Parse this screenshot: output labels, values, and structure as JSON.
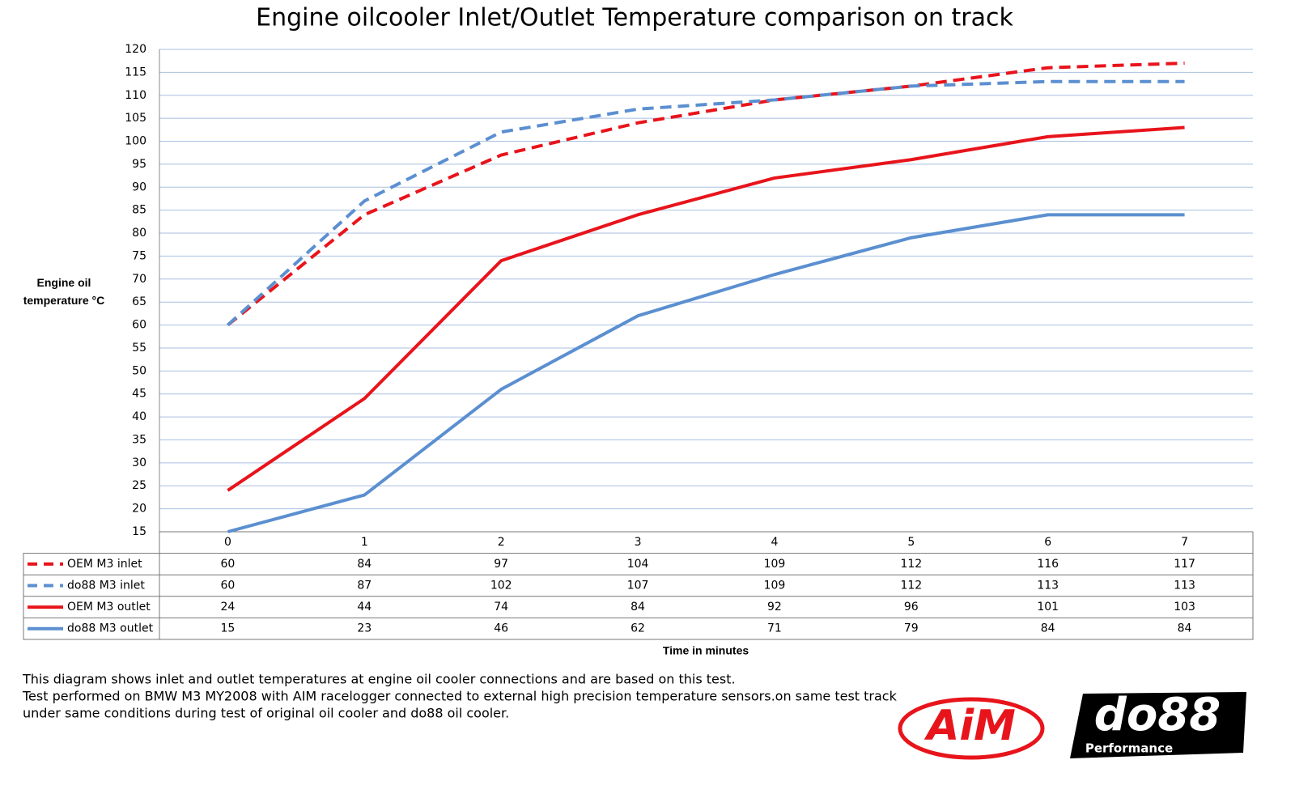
{
  "chart_data": {
    "type": "line",
    "title": "Engine oilcooler Inlet/Outlet Temperature comparison on track",
    "y_label": "Engine oil temperature °C",
    "x_label": "Time in minutes",
    "categories": [
      "0",
      "1",
      "2",
      "3",
      "4",
      "5",
      "6",
      "7"
    ],
    "series": [
      {
        "name": "OEM M3 inlet",
        "color": "#e8141b",
        "style": "dashed",
        "values": [
          60,
          84,
          97,
          104,
          109,
          112,
          116,
          117
        ]
      },
      {
        "name": "do88 M3 inlet",
        "color": "#5b8fd0",
        "style": "dashed",
        "values": [
          60,
          87,
          102,
          107,
          109,
          112,
          113,
          113
        ]
      },
      {
        "name": "OEM M3 outlet",
        "color": "#e8141b",
        "style": "solid",
        "values": [
          24,
          44,
          74,
          84,
          92,
          96,
          101,
          103
        ]
      },
      {
        "name": "do88 M3 outlet",
        "color": "#5b8fd0",
        "style": "solid",
        "values": [
          15,
          23,
          46,
          62,
          71,
          79,
          84,
          84
        ]
      }
    ],
    "ylim": [
      15,
      120
    ],
    "yticks": [
      15,
      20,
      25,
      30,
      35,
      40,
      45,
      50,
      55,
      60,
      65,
      70,
      75,
      80,
      85,
      90,
      95,
      100,
      105,
      110,
      115,
      120
    ],
    "grid": true,
    "data_table": true,
    "notes": [
      "This diagram shows inlet and outlet temperatures at engine oil cooler connections and are based on this test.",
      "Test performed on BMW M3 MY2008 with AIM racelogger connected to external high precision temperature sensors.on same test track",
      "under same conditions during test of original oil cooler and do88 oil cooler."
    ],
    "logos": [
      "AiM",
      "do88",
      "Performance"
    ]
  }
}
